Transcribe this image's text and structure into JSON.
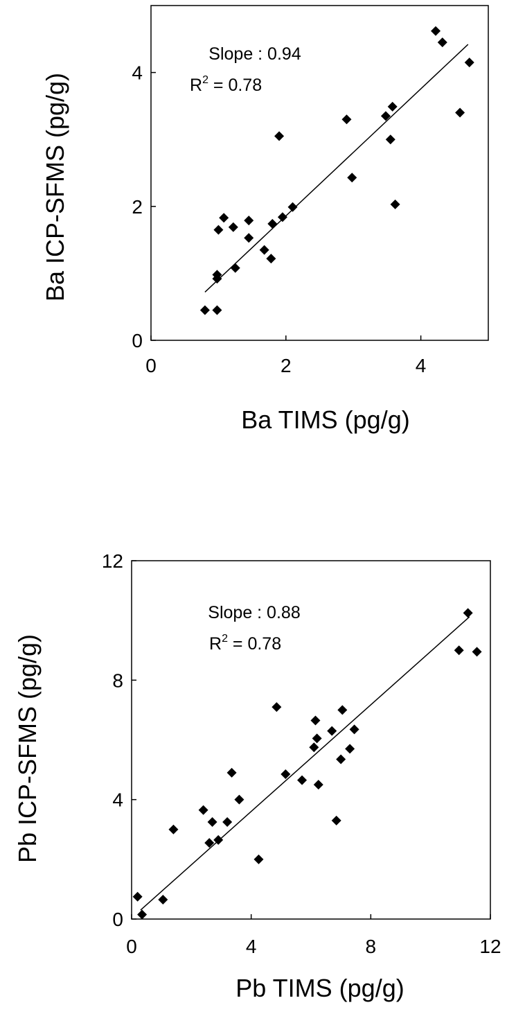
{
  "chart_data": [
    {
      "type": "scatter",
      "xlabel": "Ba TIMS (pg/g)",
      "ylabel": "Ba ICP-SFMS (pg/g)",
      "xlim": [
        0,
        5
      ],
      "ylim": [
        0,
        5
      ],
      "xticks": [
        "0",
        "2",
        "4"
      ],
      "yticks": [
        "0",
        "2",
        "4"
      ],
      "xtick_values": [
        0,
        2,
        4
      ],
      "ytick_values": [
        0,
        2,
        4
      ],
      "annotation": {
        "slope": "Slope : 0.94",
        "r2_prefix": "R",
        "r2_sup": "2",
        "r2_suffix": " = 0.78"
      },
      "fit": {
        "x": [
          0.8,
          4.7
        ],
        "y": [
          0.72,
          4.42
        ]
      },
      "points": [
        [
          0.8,
          0.45
        ],
        [
          0.98,
          0.45
        ],
        [
          0.98,
          0.92
        ],
        [
          0.98,
          0.98
        ],
        [
          1.0,
          1.65
        ],
        [
          1.08,
          1.83
        ],
        [
          1.22,
          1.69
        ],
        [
          1.25,
          1.08
        ],
        [
          1.45,
          1.79
        ],
        [
          1.45,
          1.53
        ],
        [
          1.68,
          1.35
        ],
        [
          1.78,
          1.22
        ],
        [
          1.8,
          1.74
        ],
        [
          1.9,
          3.05
        ],
        [
          1.95,
          1.84
        ],
        [
          2.1,
          1.99
        ],
        [
          2.9,
          3.3
        ],
        [
          2.98,
          2.43
        ],
        [
          3.48,
          3.35
        ],
        [
          3.55,
          3.0
        ],
        [
          3.58,
          3.49
        ],
        [
          3.62,
          2.03
        ],
        [
          4.22,
          4.62
        ],
        [
          4.32,
          4.45
        ],
        [
          4.58,
          3.4
        ],
        [
          4.72,
          4.15
        ]
      ]
    },
    {
      "type": "scatter",
      "xlabel": "Pb TIMS (pg/g)",
      "ylabel": "Pb ICP-SFMS (pg/g)",
      "xlim": [
        0,
        12
      ],
      "ylim": [
        0,
        12
      ],
      "xticks": [
        "0",
        "4",
        "8",
        "12"
      ],
      "yticks": [
        "0",
        "4",
        "8",
        "12"
      ],
      "xtick_values": [
        0,
        4,
        8,
        12
      ],
      "ytick_values": [
        0,
        4,
        8,
        12
      ],
      "annotation": {
        "slope": "Slope : 0.88",
        "r2_prefix": "R",
        "r2_sup": "2",
        "r2_suffix": " = 0.78"
      },
      "fit": {
        "x": [
          0.3,
          11.3
        ],
        "y": [
          0.3,
          10.12
        ]
      },
      "points": [
        [
          0.2,
          0.75
        ],
        [
          0.35,
          0.15
        ],
        [
          1.05,
          0.65
        ],
        [
          1.4,
          3.0
        ],
        [
          2.4,
          3.65
        ],
        [
          2.6,
          2.55
        ],
        [
          2.7,
          3.25
        ],
        [
          2.9,
          2.65
        ],
        [
          3.2,
          3.25
        ],
        [
          3.35,
          4.9
        ],
        [
          3.6,
          4.0
        ],
        [
          4.25,
          2.0
        ],
        [
          4.85,
          7.1
        ],
        [
          5.15,
          4.85
        ],
        [
          5.7,
          4.65
        ],
        [
          6.1,
          5.75
        ],
        [
          6.15,
          6.65
        ],
        [
          6.2,
          6.05
        ],
        [
          6.25,
          4.5
        ],
        [
          6.7,
          6.3
        ],
        [
          6.85,
          3.3
        ],
        [
          7.0,
          5.35
        ],
        [
          7.05,
          7.0
        ],
        [
          7.3,
          5.7
        ],
        [
          7.45,
          6.35
        ],
        [
          10.95,
          9.0
        ],
        [
          11.25,
          10.25
        ],
        [
          11.55,
          8.95
        ]
      ]
    }
  ]
}
